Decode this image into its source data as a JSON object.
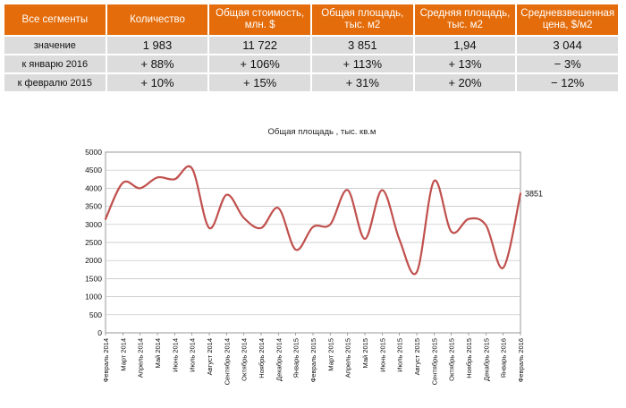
{
  "table": {
    "headers": [
      "Все сегменты",
      "Количество",
      "Общая стоимость, млн. $",
      "Общая площадь, тыс. м2",
      "Средняя площадь, тыс. м2",
      "Средневзвешенная цена, $/м2"
    ],
    "rows": [
      {
        "label": "значение",
        "cells": [
          "1 983",
          "11 722",
          "3 851",
          "1,94",
          "3 044"
        ]
      },
      {
        "label": "к январю 2016",
        "cells": [
          "+ 88%",
          "+ 106%",
          "+ 113%",
          "+ 13%",
          "− 3%"
        ]
      },
      {
        "label": "к февралю 2015",
        "cells": [
          "+ 10%",
          "+ 15%",
          "+ 31%",
          "+ 20%",
          "− 12%"
        ]
      }
    ]
  },
  "chart_data": {
    "type": "line",
    "title": "Общая площадь , тыс. кв.м",
    "xlabel": "",
    "ylabel": "",
    "ylim": [
      0,
      5000
    ],
    "yticks": [
      0,
      500,
      1000,
      1500,
      2000,
      2500,
      3000,
      3500,
      4000,
      4500,
      5000
    ],
    "grid": true,
    "categories": [
      "Февраль 2014",
      "Март 2014",
      "Апрель 2014",
      "Май 2014",
      "Июнь 2014",
      "Июль 2014",
      "Август 2014",
      "Сентябрь 2014",
      "Октябрь 2014",
      "Ноябрь 2014",
      "Декабрь 2014",
      "Январь 2015",
      "Февраль 2015",
      "Март 2015",
      "Апрель 2015",
      "Май 2015",
      "Июнь 2015",
      "Июль 2015",
      "Август 2015",
      "Сентябрь 2015",
      "Октябрь 2015",
      "Ноябрь 2015",
      "Декабрь 2015",
      "Январь 2016",
      "Февраль 2016"
    ],
    "series": [
      {
        "values": [
          3150,
          4150,
          4000,
          4300,
          4250,
          4550,
          2900,
          3820,
          3180,
          2900,
          3450,
          2300,
          2930,
          3000,
          3950,
          2600,
          3950,
          2580,
          1680,
          4200,
          2800,
          3150,
          2980,
          1800,
          3851
        ]
      }
    ],
    "end_label": "3851",
    "line_color": "#c0504d"
  }
}
